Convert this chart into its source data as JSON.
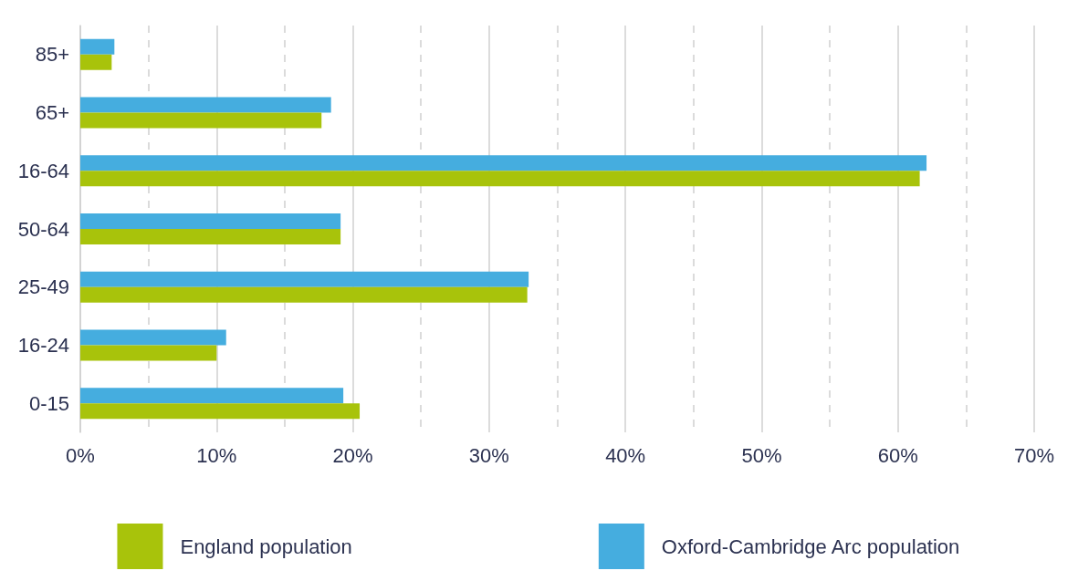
{
  "chart_data": {
    "type": "bar",
    "orientation": "horizontal",
    "categories": [
      "85+",
      "65+",
      "16-64",
      "50-64",
      "25-49",
      "16-24",
      "0-15"
    ],
    "series": [
      {
        "name": "England population",
        "color": "#a8c30b",
        "values": [
          2.3,
          17.7,
          61.6,
          19.1,
          32.8,
          10.0,
          20.5
        ]
      },
      {
        "name": "Oxford-Cambridge Arc population",
        "color": "#45addf",
        "values": [
          2.5,
          18.4,
          62.1,
          19.1,
          32.9,
          10.7,
          19.3
        ]
      }
    ],
    "xlim": [
      0,
      70
    ],
    "xticks": [
      {
        "value": 0,
        "label": "0%"
      },
      {
        "value": 10,
        "label": "10%"
      },
      {
        "value": 20,
        "label": "20%"
      },
      {
        "value": 30,
        "label": "30%"
      },
      {
        "value": 40,
        "label": "40%"
      },
      {
        "value": 50,
        "label": "50%"
      },
      {
        "value": 60,
        "label": "60%"
      },
      {
        "value": 70,
        "label": "70%"
      }
    ],
    "grid": "x",
    "legend": "bottom"
  }
}
